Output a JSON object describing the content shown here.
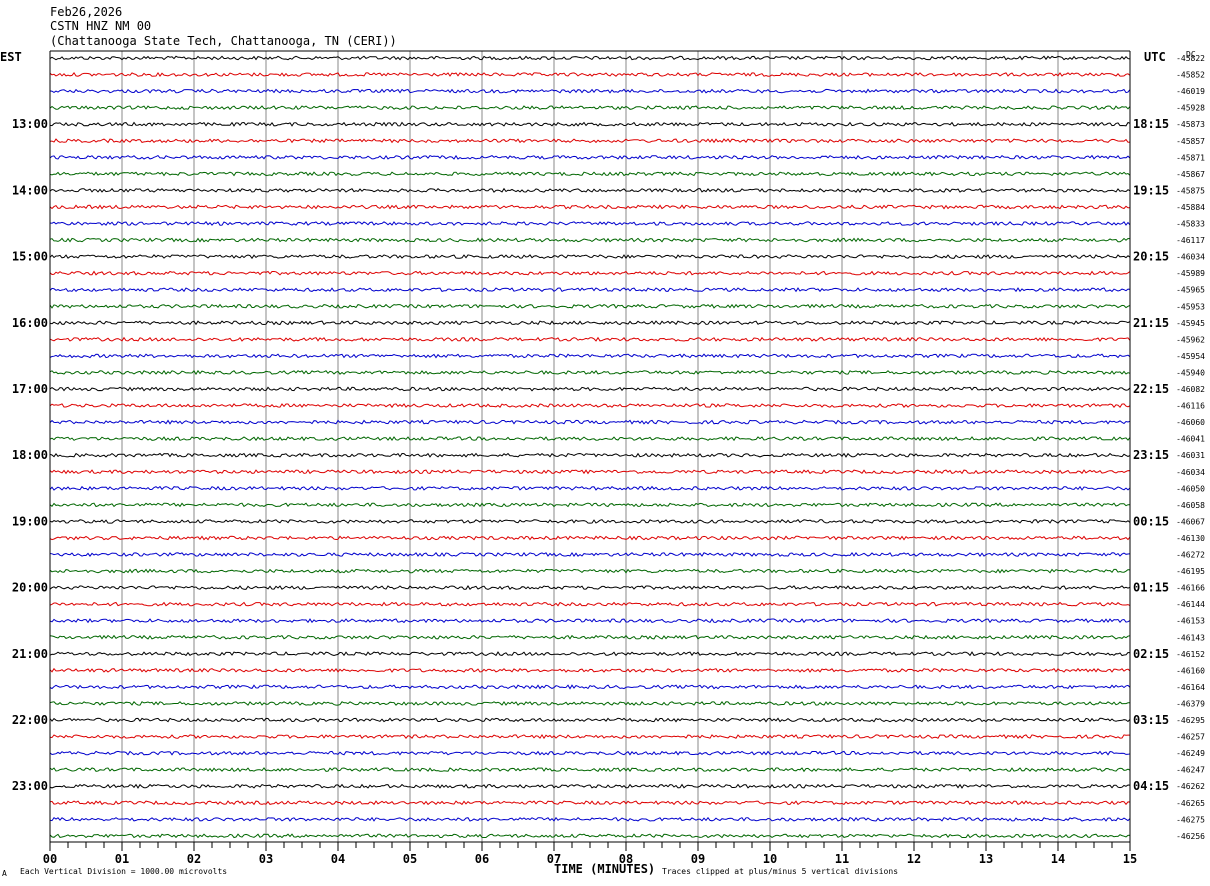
{
  "header": {
    "date": "Feb26,2026",
    "station": "CSTN HNZ NM 00",
    "location": "(Chattanooga State Tech, Chattanooga, TN (CERI))"
  },
  "footer": {
    "vertical_division_note": "Each Vertical Division = 1000.00 microvolts",
    "clip_note": "Traces clipped at plus/minus 5 vertical divisions",
    "corner_mark": "A"
  },
  "chart_data": {
    "type": "line",
    "title": "",
    "xlabel": "TIME (MINUTES)",
    "ylabel": "",
    "x_ticks": [
      "00",
      "01",
      "02",
      "03",
      "04",
      "05",
      "06",
      "07",
      "08",
      "09",
      "10",
      "11",
      "12",
      "13",
      "14",
      "15"
    ],
    "xlim": [
      0,
      15
    ],
    "left_axis_label": "EST",
    "right_axis_label": "UTC",
    "dc_label": "DC",
    "left_hour_labels": [
      "13:00",
      "14:00",
      "15:00",
      "16:00",
      "17:00",
      "18:00",
      "19:00",
      "20:00",
      "21:00",
      "22:00",
      "23:00"
    ],
    "right_hour_labels": [
      "18:15",
      "19:15",
      "20:15",
      "21:15",
      "22:15",
      "23:15",
      "00:15",
      "01:15",
      "02:15",
      "03:15",
      "04:15"
    ],
    "trace_colors": [
      "#000000",
      "#dd0000",
      "#0000cc",
      "#006600"
    ],
    "dc_values": [
      "-45822",
      "-45852",
      "-46019",
      "-45928",
      "-45873",
      "-45857",
      "-45871",
      "-45867",
      "-45875",
      "-45884",
      "-45833",
      "-46117",
      "-46034",
      "-45989",
      "-45965",
      "-45953",
      "-45945",
      "-45962",
      "-45954",
      "-45940",
      "-46082",
      "-46116",
      "-46060",
      "-46041",
      "-46031",
      "-46034",
      "-46050",
      "-46058",
      "-46067",
      "-46130",
      "-46272",
      "-46195",
      "-46166",
      "-46144",
      "-46153",
      "-46143",
      "-46152",
      "-46160",
      "-46164",
      "-46379",
      "-46295",
      "-46257",
      "-46249",
      "-46247",
      "-46262",
      "-46265",
      "-46275",
      "-46256"
    ],
    "grid": true
  }
}
